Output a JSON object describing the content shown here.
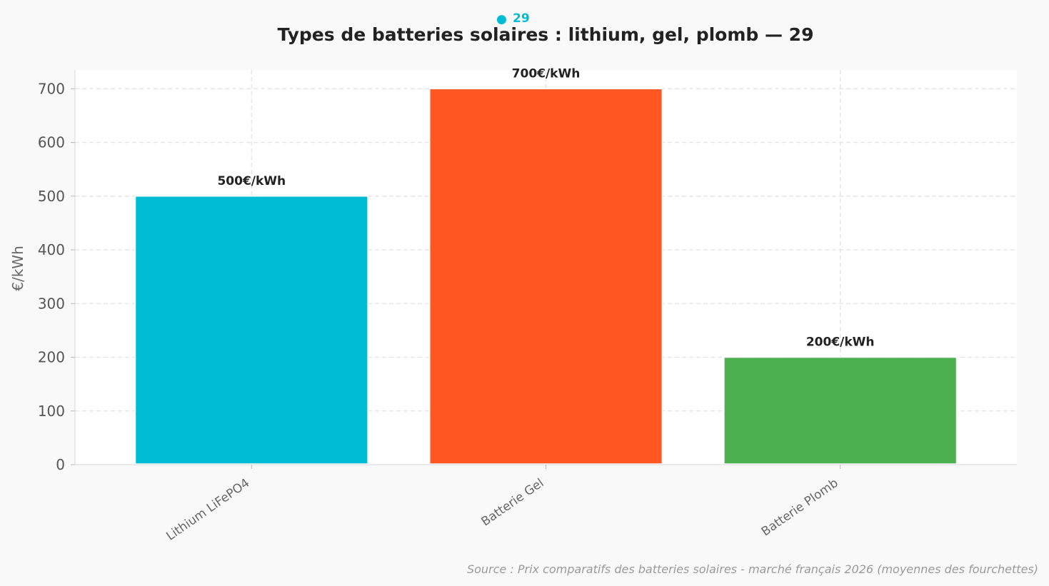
{
  "badge": {
    "dot": "●",
    "value": "29",
    "color": "#00bcd4"
  },
  "title": "Types de batteries solaires : lithium, gel, plomb  — 29",
  "source": "Source : Prix comparatifs des batteries solaires - marché français 2026 (moyennes des fourchettes)",
  "chart_data": {
    "type": "bar",
    "title": "Types de batteries solaires : lithium, gel, plomb  — 29",
    "xlabel": "",
    "ylabel": "€/kWh",
    "categories": [
      "Lithium LiFePO4",
      "Batterie Gel",
      "Batterie Plomb"
    ],
    "values": [
      500,
      700,
      200
    ],
    "data_labels": [
      "500€/kWh",
      "700€/kWh",
      "200€/kWh"
    ],
    "colors": [
      "#00bcd4",
      "#ff5722",
      "#4caf50"
    ],
    "ylim": [
      0,
      735
    ],
    "yticks": [
      0,
      100,
      200,
      300,
      400,
      500,
      600,
      700
    ],
    "grid": true,
    "legend": "none"
  }
}
